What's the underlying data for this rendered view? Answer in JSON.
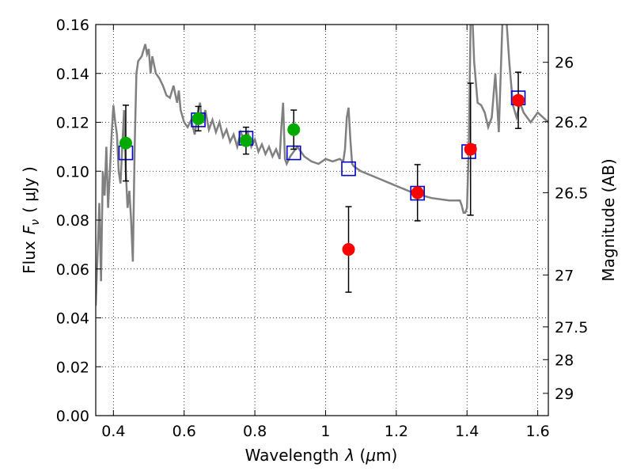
{
  "chart_data": {
    "type": "scatter",
    "xlabel": "Wavelength",
    "xlabel_symbol": "λ",
    "xlabel_unit_open": " (",
    "xlabel_unit_mu": "μ",
    "xlabel_unit_rest": "m)",
    "ylabel": "Flux",
    "ylabel_symbol": "F",
    "ylabel_symbol_sub": "ν",
    "ylabel_unit": "( μJy )",
    "y2label": "Magnitude (AB)",
    "xlim": [
      0.35,
      1.63
    ],
    "ylim": [
      0.0,
      0.16
    ],
    "x_ticks": [
      0.4,
      0.6,
      0.8,
      1.0,
      1.2,
      1.4,
      1.6
    ],
    "x_tick_labels": [
      "0.4",
      "0.6",
      "0.8",
      "1",
      "1.2",
      "1.4",
      "1.6"
    ],
    "y_ticks": [
      0.0,
      0.02,
      0.04,
      0.06,
      0.08,
      0.1,
      0.12,
      0.14,
      0.16
    ],
    "y_tick_labels": [
      "0.00",
      "0.02",
      "0.04",
      "0.06",
      "0.08",
      "0.10",
      "0.12",
      "0.14",
      "0.16"
    ],
    "y2_ticks": [
      26,
      26.2,
      26.5,
      27,
      27.5,
      28,
      29
    ],
    "y2_tick_labels": [
      "26",
      "26.2",
      "26.5",
      "27",
      "27.5",
      "28",
      "29"
    ],
    "grid": true,
    "colors": {
      "model": "#808080",
      "detected": "#00aa00",
      "upper": "#ff0000",
      "model_photometry": "#0000cc",
      "errorbar": "#000000"
    },
    "series": [
      {
        "name": "model_spectrum",
        "style": "line",
        "x": [
          0.35,
          0.355,
          0.36,
          0.365,
          0.37,
          0.375,
          0.38,
          0.385,
          0.39,
          0.395,
          0.4,
          0.405,
          0.41,
          0.415,
          0.42,
          0.425,
          0.43,
          0.435,
          0.44,
          0.445,
          0.45,
          0.455,
          0.46,
          0.465,
          0.47,
          0.48,
          0.49,
          0.495,
          0.5,
          0.505,
          0.51,
          0.52,
          0.53,
          0.54,
          0.55,
          0.56,
          0.57,
          0.58,
          0.585,
          0.59,
          0.6,
          0.61,
          0.62,
          0.63,
          0.64,
          0.645,
          0.65,
          0.66,
          0.67,
          0.68,
          0.69,
          0.7,
          0.71,
          0.72,
          0.73,
          0.74,
          0.75,
          0.76,
          0.77,
          0.78,
          0.79,
          0.8,
          0.81,
          0.82,
          0.83,
          0.84,
          0.85,
          0.86,
          0.87,
          0.875,
          0.88,
          0.885,
          0.89,
          0.9,
          0.92,
          0.94,
          0.96,
          0.98,
          1.0,
          1.02,
          1.04,
          1.05,
          1.055,
          1.06,
          1.065,
          1.07,
          1.075,
          1.08,
          1.1,
          1.15,
          1.2,
          1.25,
          1.3,
          1.35,
          1.38,
          1.385,
          1.39,
          1.395,
          1.4,
          1.405,
          1.41,
          1.415,
          1.42,
          1.43,
          1.44,
          1.45,
          1.46,
          1.47,
          1.48,
          1.49,
          1.5,
          1.51,
          1.52,
          1.53,
          1.54,
          1.55,
          1.56,
          1.58,
          1.6,
          1.63
        ],
        "y": [
          0.045,
          0.065,
          0.087,
          0.055,
          0.1,
          0.09,
          0.11,
          0.085,
          0.1,
          0.115,
          0.127,
          0.12,
          0.115,
          0.1,
          0.095,
          0.11,
          0.125,
          0.1,
          0.085,
          0.092,
          0.08,
          0.063,
          0.11,
          0.14,
          0.145,
          0.147,
          0.152,
          0.148,
          0.15,
          0.14,
          0.147,
          0.14,
          0.138,
          0.135,
          0.131,
          0.13,
          0.135,
          0.128,
          0.133,
          0.125,
          0.12,
          0.118,
          0.121,
          0.115,
          0.125,
          0.128,
          0.12,
          0.125,
          0.117,
          0.121,
          0.116,
          0.12,
          0.114,
          0.117,
          0.112,
          0.115,
          0.11,
          0.116,
          0.113,
          0.116,
          0.11,
          0.113,
          0.108,
          0.111,
          0.107,
          0.11,
          0.106,
          0.109,
          0.105,
          0.118,
          0.128,
          0.105,
          0.103,
          0.106,
          0.11,
          0.106,
          0.104,
          0.103,
          0.105,
          0.104,
          0.105,
          0.104,
          0.109,
          0.122,
          0.126,
          0.113,
          0.103,
          0.102,
          0.1,
          0.097,
          0.094,
          0.091,
          0.089,
          0.088,
          0.088,
          0.086,
          0.083,
          0.083,
          0.085,
          0.11,
          0.16,
          0.165,
          0.145,
          0.128,
          0.127,
          0.124,
          0.118,
          0.122,
          0.14,
          0.116,
          0.16,
          0.165,
          0.144,
          0.127,
          0.122,
          0.128,
          0.124,
          0.12,
          0.124,
          0.12
        ]
      },
      {
        "name": "observed_photometry",
        "style": "errorbar",
        "points": [
          {
            "x": 0.435,
            "y": 0.1115,
            "err": 0.0155,
            "kind": "detected"
          },
          {
            "x": 0.64,
            "y": 0.1215,
            "err": 0.005,
            "kind": "detected"
          },
          {
            "x": 0.775,
            "y": 0.1125,
            "err": 0.0055,
            "kind": "detected"
          },
          {
            "x": 0.91,
            "y": 0.117,
            "err": 0.008,
            "kind": "detected"
          },
          {
            "x": 1.065,
            "y": 0.068,
            "err": 0.0175,
            "kind": "upper"
          },
          {
            "x": 1.26,
            "y": 0.0912,
            "err": 0.0115,
            "kind": "upper"
          },
          {
            "x": 1.41,
            "y": 0.109,
            "err": 0.027,
            "kind": "upper"
          },
          {
            "x": 1.545,
            "y": 0.129,
            "err": 0.0115,
            "kind": "upper"
          }
        ]
      },
      {
        "name": "model_photometry",
        "style": "open-square",
        "x": [
          0.435,
          0.64,
          0.775,
          0.91,
          1.065,
          1.26,
          1.405,
          1.545
        ],
        "y": [
          0.1075,
          0.121,
          0.1135,
          0.1075,
          0.101,
          0.091,
          0.108,
          0.13
        ]
      }
    ]
  }
}
